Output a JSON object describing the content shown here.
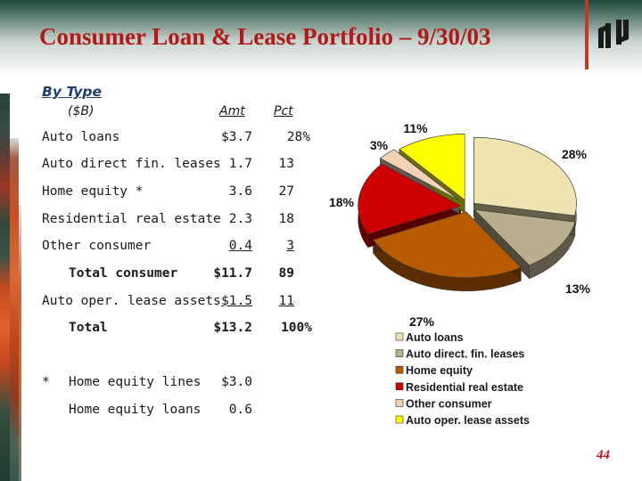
{
  "title": "Consumer Loan & Lease Portfolio – 9/30/03",
  "page_number": "44",
  "table": {
    "heading": "By Type",
    "unit_header": "($B)",
    "amt_header": "Amt",
    "pct_header": "Pct",
    "rows": [
      {
        "label": "Auto loans",
        "amt": "$3.7",
        "pct": "28%"
      },
      {
        "label": "Auto direct fin. leases",
        "amt": "1.7",
        "pct": "13"
      },
      {
        "label": "Home equity *",
        "amt": "3.6",
        "pct": "27"
      },
      {
        "label": "Residential real estate",
        "amt": "2.3",
        "pct": "18"
      },
      {
        "label": "Other consumer",
        "amt": "0.4",
        "pct": "3"
      },
      {
        "label": "Total consumer",
        "amt": "$11.7",
        "pct": "89"
      },
      {
        "label": "Auto oper. lease assets",
        "amt": "$1.5",
        "pct": "11"
      },
      {
        "label": "Total",
        "amt": "$13.2",
        "pct": "100%"
      }
    ]
  },
  "footnote": {
    "marker": "*",
    "rows": [
      {
        "label": "Home equity lines",
        "amt": "$3.0"
      },
      {
        "label": "Home equity loans",
        "amt": "0.6"
      }
    ]
  },
  "colors": {
    "title": "#b01a1a",
    "heading": "#1f3d73"
  },
  "chart_data": {
    "type": "pie",
    "style": "3d-exploded",
    "slices": [
      {
        "name": "Auto loans",
        "value": 28,
        "label": "28%",
        "color": "#efe3b0"
      },
      {
        "name": "Auto direct. fin. leases",
        "value": 13,
        "label": "13%",
        "color": "#b9af8e"
      },
      {
        "name": "Home equity",
        "value": 27,
        "label": "27%",
        "color": "#b85a00"
      },
      {
        "name": "Residential real estate",
        "value": 18,
        "label": "18%",
        "color": "#cc0000"
      },
      {
        "name": "Other consumer",
        "value": 3,
        "label": "3%",
        "color": "#f3d0b8"
      },
      {
        "name": "Auto oper. lease assets",
        "value": 11,
        "label": "11%",
        "color": "#ffff00"
      }
    ],
    "legend_position": "bottom"
  }
}
